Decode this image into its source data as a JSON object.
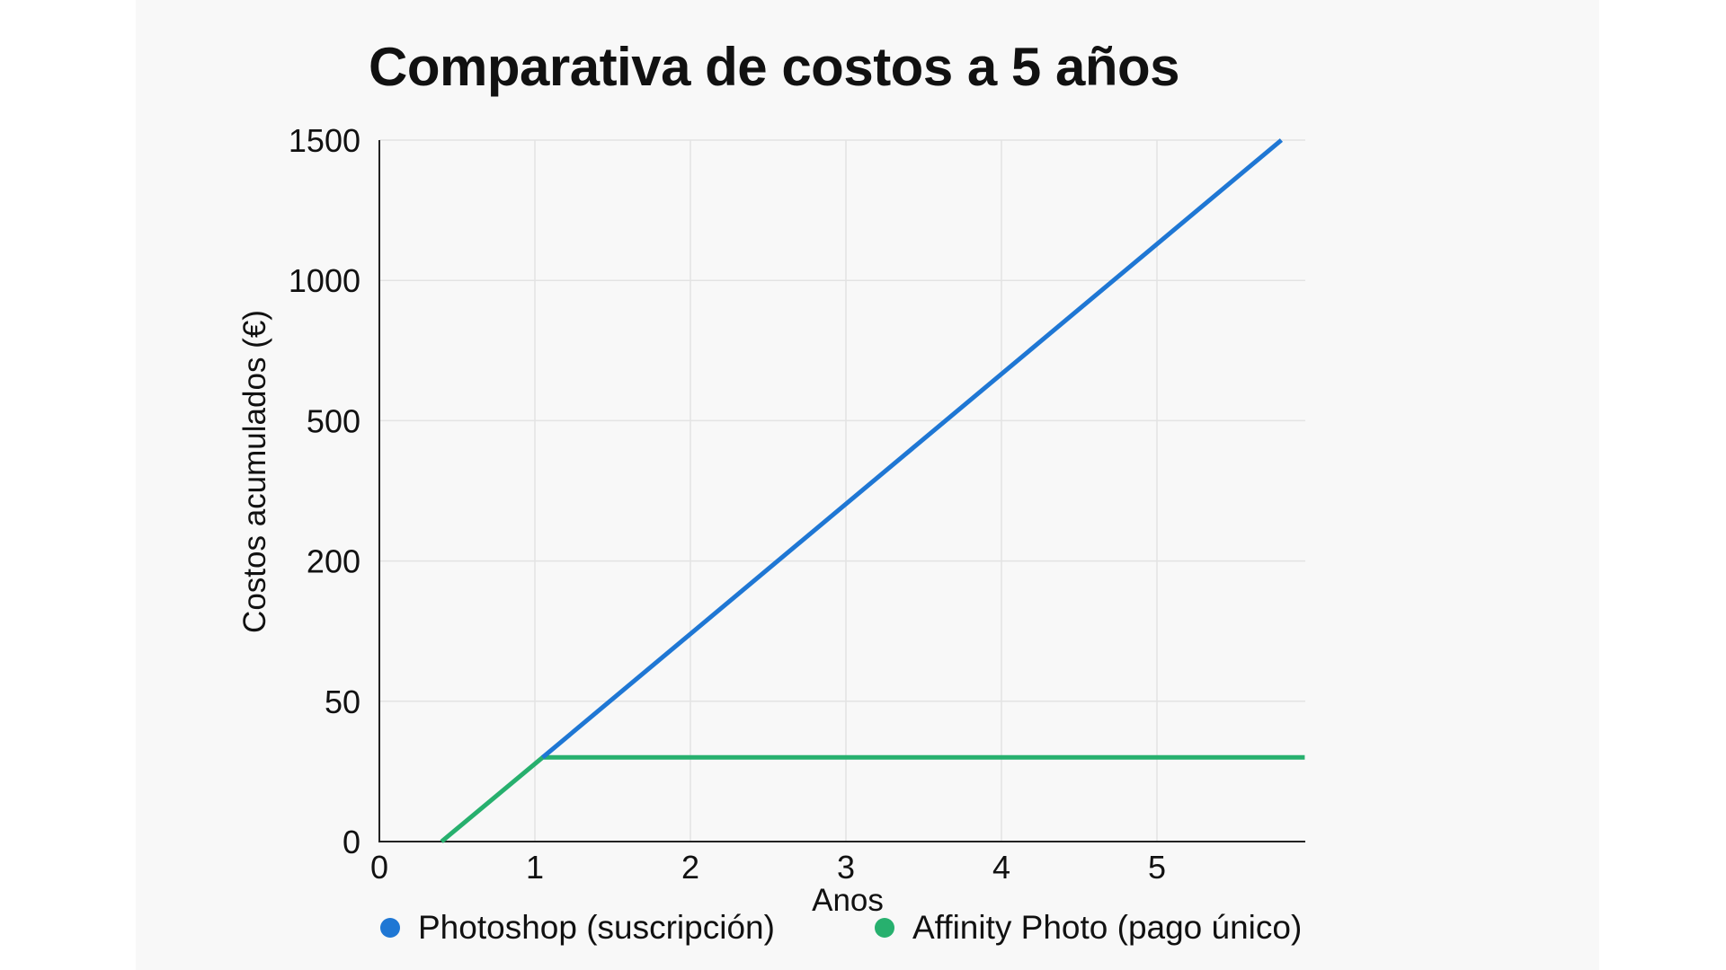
{
  "chart_data": {
    "type": "line",
    "title": "Comparativa de costos a 5 años",
    "xlabel": "Anos",
    "ylabel": "Costos acumulados (€)",
    "x_tick_labels": [
      "0",
      "1",
      "2",
      "3",
      "4",
      "5"
    ],
    "y_tick_labels": [
      "0",
      "50",
      "200",
      "500",
      "1000",
      "1500"
    ],
    "y_scale": "non-linear (categorical ticks, evenly spaced)",
    "xlim": [
      0,
      5.95
    ],
    "grid": true,
    "legend_position": "bottom",
    "series": [
      {
        "name": "Photoshop (suscripción)",
        "color": "#1f77d4",
        "points": [
          {
            "x": 1.05,
            "y": 30
          },
          {
            "x": 5.8,
            "y": 1500
          }
        ]
      },
      {
        "name": "Affinity Photo (pago único)",
        "color": "#27b06e",
        "points": [
          {
            "x": 0.4,
            "y": 0
          },
          {
            "x": 1.05,
            "y": 30
          },
          {
            "x": 5.95,
            "y": 30
          }
        ]
      }
    ]
  }
}
